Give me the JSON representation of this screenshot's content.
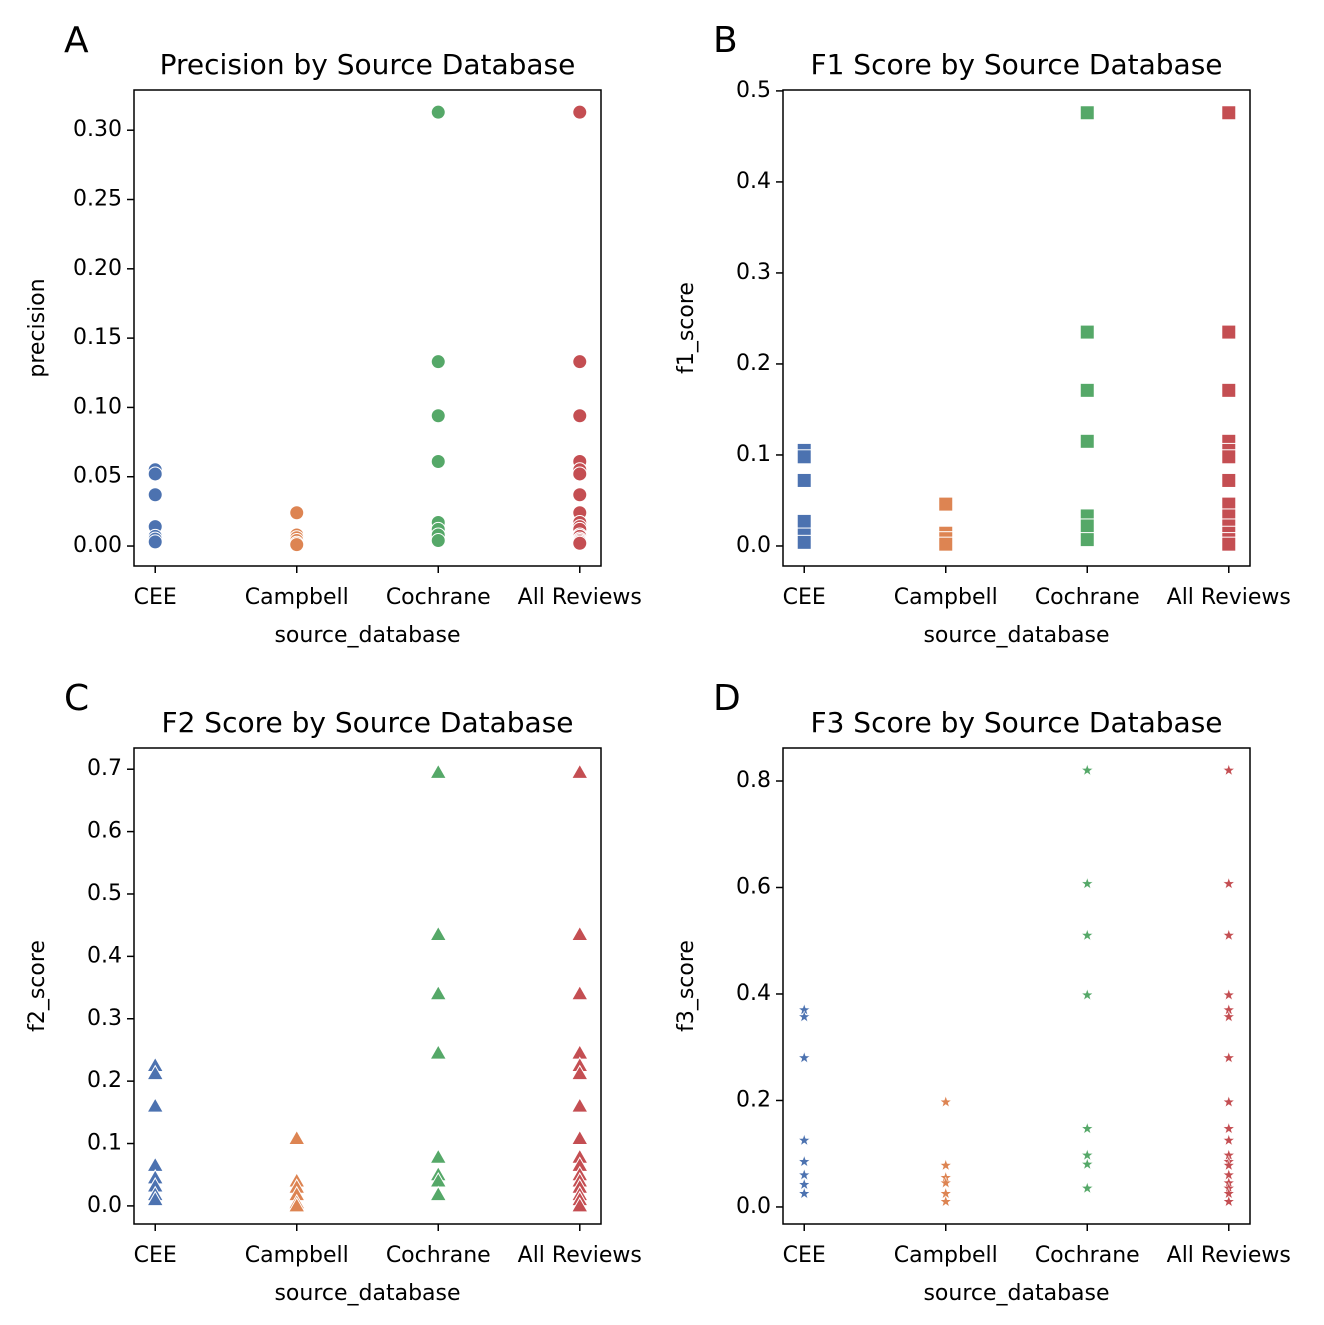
{
  "chart_data": [
    {
      "type": "strip",
      "marker": "circle",
      "panel": "A",
      "title": "Precision by Source Database",
      "xlabel": "source_database",
      "ylabel": "precision",
      "categories": [
        "CEE",
        "Campbell",
        "Cochrane",
        "All Reviews"
      ],
      "colors": [
        "#4c72b0",
        "#dd8452",
        "#55a868",
        "#c44e52"
      ],
      "values": [
        [
          0.055,
          0.052,
          0.037,
          0.014,
          0.007,
          0.005,
          0.003
        ],
        [
          0.024,
          0.008,
          0.006,
          0.004,
          0.002,
          0.001
        ],
        [
          0.313,
          0.133,
          0.094,
          0.061,
          0.017,
          0.012,
          0.008,
          0.004
        ],
        [
          0.313,
          0.133,
          0.094,
          0.061,
          0.055,
          0.052,
          0.037,
          0.024,
          0.017,
          0.014,
          0.012,
          0.008,
          0.007,
          0.005,
          0.004,
          0.003,
          0.002
        ]
      ],
      "ylim": [
        -0.0144,
        0.329
      ],
      "yticks": [
        {
          "value": 0,
          "label": "0.00"
        },
        0.05,
        {
          "value": 0.1,
          "label": "0.10"
        },
        0.15,
        {
          "value": 0.2,
          "label": "0.20"
        },
        0.25,
        {
          "value": 0.3,
          "label": "0.30"
        }
      ]
    },
    {
      "type": "strip",
      "marker": "square",
      "panel": "B",
      "title": "F1 Score by Source Database",
      "xlabel": "source_database",
      "ylabel": "f1_score",
      "categories": [
        "CEE",
        "Campbell",
        "Cochrane",
        "All Reviews"
      ],
      "colors": [
        "#4c72b0",
        "#dd8452",
        "#55a868",
        "#c44e52"
      ],
      "values": [
        [
          0.105,
          0.098,
          0.072,
          0.027,
          0.012,
          0.004
        ],
        [
          0.046,
          0.014,
          0.008,
          0.002
        ],
        [
          0.476,
          0.235,
          0.171,
          0.115,
          0.033,
          0.022,
          0.007
        ],
        [
          0.476,
          0.235,
          0.171,
          0.115,
          0.105,
          0.098,
          0.072,
          0.046,
          0.033,
          0.022,
          0.014,
          0.007,
          0.002
        ]
      ],
      "ylim": [
        -0.022,
        0.501
      ],
      "yticks": [
        {
          "value": 0,
          "label": "0.0"
        },
        0.1,
        0.2,
        0.3,
        0.4,
        0.5
      ]
    },
    {
      "type": "strip",
      "marker": "triangle",
      "panel": "C",
      "title": "F2 Score by Source Database",
      "xlabel": "source_database",
      "ylabel": "f2_score",
      "categories": [
        "CEE",
        "Campbell",
        "Cochrane",
        "All Reviews"
      ],
      "colors": [
        "#4c72b0",
        "#dd8452",
        "#55a868",
        "#c44e52"
      ],
      "values": [
        [
          0.225,
          0.212,
          0.16,
          0.065,
          0.045,
          0.032,
          0.018,
          0.01
        ],
        [
          0.108,
          0.04,
          0.03,
          0.018,
          0.005,
          0
        ],
        [
          0.695,
          0.435,
          0.34,
          0.245,
          0.078,
          0.05,
          0.04,
          0.018
        ],
        [
          0.695,
          0.435,
          0.34,
          0.245,
          0.225,
          0.212,
          0.16,
          0.108,
          0.078,
          0.065,
          0.05,
          0.04,
          0.03,
          0.018,
          0.01,
          0
        ]
      ],
      "ylim": [
        -0.029,
        0.734
      ],
      "yticks": [
        {
          "value": 0,
          "label": "0.0"
        },
        0.1,
        0.2,
        0.3,
        0.4,
        0.5,
        0.6,
        0.7
      ]
    },
    {
      "type": "strip",
      "marker": "star",
      "panel": "D",
      "title": "F3 Score by Source Database",
      "xlabel": "source_database",
      "ylabel": "f3_score",
      "categories": [
        "CEE",
        "Campbell",
        "Cochrane",
        "All Reviews"
      ],
      "colors": [
        "#4c72b0",
        "#dd8452",
        "#55a868",
        "#c44e52"
      ],
      "values": [
        [
          0.37,
          0.357,
          0.28,
          0.125,
          0.085,
          0.06,
          0.042,
          0.025
        ],
        [
          0.197,
          0.078,
          0.055,
          0.045,
          0.025,
          0.01
        ],
        [
          0.82,
          0.607,
          0.51,
          0.398,
          0.147,
          0.097,
          0.08,
          0.035
        ],
        [
          0.82,
          0.607,
          0.51,
          0.398,
          0.37,
          0.357,
          0.28,
          0.197,
          0.147,
          0.125,
          0.097,
          0.085,
          0.078,
          0.06,
          0.045,
          0.035,
          0.025,
          0.01
        ]
      ],
      "ylim": [
        -0.032,
        0.862
      ],
      "yticks": [
        {
          "value": 0,
          "label": "0.0"
        },
        0.2,
        0.4,
        0.6,
        0.8
      ]
    }
  ]
}
